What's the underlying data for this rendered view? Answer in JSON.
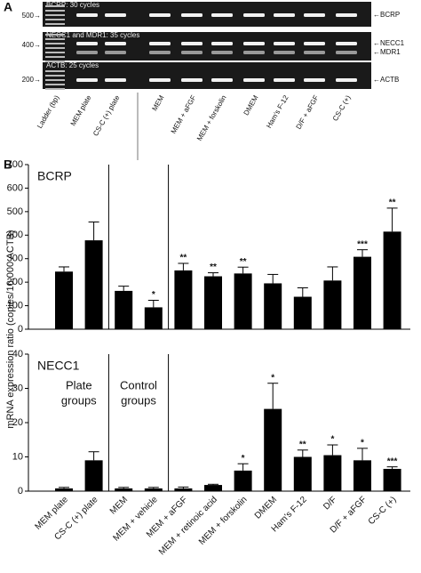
{
  "panel_a": {
    "label": "A",
    "gels": [
      {
        "title": "BCRP: 30 cycles",
        "marker": "500→",
        "bands": [
          "←BCRP"
        ]
      },
      {
        "title": "NECC1 and MDR1: 35 cycles",
        "marker": "400→",
        "bands": [
          "←NECC1",
          "←MDR1"
        ]
      },
      {
        "title": "ACTB: 25 cycles",
        "marker": "200→",
        "bands": [
          "←ACTB"
        ]
      }
    ],
    "lanes": [
      "Ladder (bp)",
      "MEM plate",
      "CS-C (+) plate",
      "MEM",
      "MEM + aFGF",
      "MEM + forskolin",
      "DMEM",
      "Ham's F-12",
      "D/F + aFGF",
      "CS-C (+)"
    ]
  },
  "panel_b": {
    "label": "B",
    "ylabel": "mRNA expression ratio (copies/10,000 ACTB)"
  },
  "chart_data": [
    {
      "type": "bar",
      "title": "BCRP",
      "color": "#000000",
      "values": [
        245,
        378,
        163,
        93,
        250,
        225,
        237,
        195,
        138,
        207,
        308,
        415
      ],
      "errors": [
        20,
        78,
        20,
        30,
        30,
        15,
        27,
        38,
        38,
        58,
        30,
        100
      ],
      "significance": [
        null,
        null,
        null,
        "*",
        "**",
        "**",
        "**",
        null,
        null,
        null,
        "***",
        "**"
      ],
      "ylim": [
        0,
        700
      ],
      "yticks": [
        0,
        100,
        200,
        300,
        400,
        500,
        600,
        700
      ],
      "separators_after": [
        1,
        3
      ]
    },
    {
      "type": "bar",
      "title": "NECC1",
      "color": "#000000",
      "categories": [
        "MEM plate",
        "CS-C (+) plate",
        "MEM",
        "MEM + vehicle",
        "MEM + aFGF",
        "MEM + retinoic acid",
        "MEM + forskolin",
        "DMEM",
        "Ham's F-12",
        "D/F",
        "D/F + aFGF",
        "CS-C (+)"
      ],
      "values": [
        0.8,
        9,
        0.8,
        0.8,
        0.8,
        1.8,
        6,
        24,
        10,
        10.5,
        9,
        6.5
      ],
      "errors": [
        0.3,
        2.5,
        0.3,
        0.3,
        0.4,
        0.2,
        2,
        7.5,
        2,
        3,
        3.5,
        0.6
      ],
      "significance": [
        null,
        null,
        null,
        null,
        null,
        null,
        "*",
        "*",
        "**",
        "*",
        "*",
        "***"
      ],
      "ylim": [
        0,
        40
      ],
      "yticks": [
        0,
        10,
        20,
        30,
        40
      ],
      "group_labels": [
        [
          "Plate",
          "groups"
        ],
        [
          "Control",
          "groups"
        ]
      ],
      "separators_after": [
        1,
        3
      ]
    }
  ]
}
